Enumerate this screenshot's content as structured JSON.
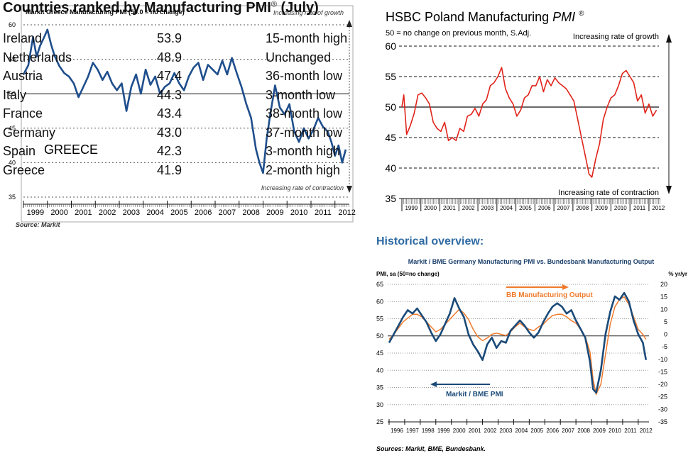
{
  "greece": {
    "title": "Markit Greece Manufacturing PMI (50.0 = no change)",
    "label": "GREECE",
    "top_note": "Increasing rate of growth",
    "bottom_note": "Increasing rate of contraction",
    "source": "Source: Markit",
    "y_ticks": [
      "60",
      "55",
      "50",
      "45",
      "40",
      "35"
    ],
    "x_ticks": [
      "1999",
      "2000",
      "2001",
      "2002",
      "2003",
      "2004",
      "2005",
      "2006",
      "2007",
      "2008",
      "2009",
      "2010",
      "2011",
      "2012"
    ],
    "line_color": "#1f4e8c"
  },
  "poland": {
    "title": "HSBC Poland Manufacturing",
    "title_italic": "PMI",
    "title_sup": "®",
    "subtitle": "50 = no change on previous month, S.Adj.",
    "top_note": "Increasing rate of growth",
    "bottom_note": "Increasing rate of contraction",
    "y_ticks": [
      "60",
      "55",
      "50",
      "45",
      "40",
      "35"
    ],
    "x_ticks": [
      "1999",
      "2000",
      "2001",
      "2002",
      "2003",
      "2004",
      "2005",
      "2006",
      "2007",
      "2008",
      "2009",
      "2010",
      "2011",
      "2012"
    ],
    "line_color": "#e0241b"
  },
  "germany": {
    "heading": "Historical overview:",
    "title": "Markit / BME Germany Manufacturing PMI vs. Bundesbank Manufacturing Output",
    "left_axis_label": "PMI, sa (50=no change)",
    "right_axis_label": "% yr/yr",
    "pmi_label": "Markit / BME PMI",
    "output_label": "BB Manufacturing Output",
    "source": "Sources: Markit, BME, Bundesbank.",
    "left_ticks": [
      "65",
      "60",
      "55",
      "50",
      "45",
      "40",
      "35",
      "30",
      "25"
    ],
    "right_ticks": [
      "20",
      "15",
      "10",
      "5",
      "0",
      "-5",
      "-10",
      "-15",
      "-20",
      "-25",
      "-30",
      "-35"
    ],
    "x_ticks": [
      "1996",
      "1997",
      "1998",
      "1999",
      "2000",
      "2001",
      "2002",
      "2003",
      "2004",
      "2005",
      "2006",
      "2007",
      "2008",
      "2009",
      "2010",
      "2011",
      "2012"
    ],
    "pmi_color": "#1b4a78",
    "output_color": "#f07a2c"
  },
  "ranking": {
    "title": "Countries ranked by Manufacturing PMI",
    "title_sup": "®",
    "title_suffix": " (July)",
    "rows": [
      {
        "country": "Ireland",
        "value": "53.9",
        "note": "15-month high"
      },
      {
        "country": "Netherlands",
        "value": "48.9",
        "note": "Unchanged"
      },
      {
        "country": "Austria",
        "value": "47.4",
        "note": "36-month low"
      },
      {
        "country": "Italy",
        "value": "44.3",
        "note": "3-month low"
      },
      {
        "country": "France",
        "value": "43.4",
        "note": "38-month low"
      },
      {
        "country": "Germany",
        "value": "43.0",
        "note": "37-month low"
      },
      {
        "country": "Spain",
        "value": "42.3",
        "note": "3-month high"
      },
      {
        "country": "Greece",
        "value": "41.9",
        "note": "2-month high"
      }
    ]
  },
  "chart_data": [
    {
      "type": "line",
      "title": "Markit Greece Manufacturing PMI (50.0 = no change)",
      "ylim": [
        35,
        60
      ],
      "x_range": [
        1999,
        2012.6
      ],
      "series": [
        {
          "x": [
            1999.0,
            1999.2,
            1999.4,
            1999.55,
            1999.7,
            1999.85,
            2000.0,
            2000.15,
            2000.3,
            2000.5,
            2000.7,
            2000.9,
            2001.1,
            2001.3,
            2001.5,
            2001.7,
            2001.9,
            2002.1,
            2002.3,
            2002.5,
            2002.7,
            2002.9,
            2003.1,
            2003.3,
            2003.5,
            2003.7,
            2003.9,
            2004.1,
            2004.3,
            2004.5,
            2004.7,
            2004.9,
            2005.1,
            2005.3,
            2005.5,
            2005.7,
            2005.9,
            2006.1,
            2006.3,
            2006.5,
            2006.7,
            2006.9,
            2007.1,
            2007.3,
            2007.5,
            2007.7,
            2007.9,
            2008.1,
            2008.3,
            2008.5,
            2008.7,
            2008.85,
            2009.0,
            2009.15,
            2009.3,
            2009.5,
            2009.7,
            2009.9,
            2010.1,
            2010.3,
            2010.5,
            2010.7,
            2010.9,
            2011.1,
            2011.3,
            2011.5,
            2011.7,
            2011.85,
            2012.0,
            2012.15,
            2012.3,
            2012.45
          ],
          "y": [
            52.8,
            54.1,
            58.2,
            55.4,
            57.0,
            58.1,
            59.3,
            57.2,
            55.5,
            54.0,
            53.0,
            52.5,
            51.5,
            49.5,
            51.0,
            52.5,
            54.5,
            53.5,
            52.0,
            53.2,
            51.5,
            50.5,
            51.5,
            47.5,
            51.0,
            52.8,
            50.0,
            53.5,
            51.3,
            52.5,
            50.0,
            51.0,
            51.5,
            53.0,
            51.5,
            50.5,
            52.5,
            53.8,
            54.5,
            52.0,
            54.2,
            53.5,
            52.8,
            54.8,
            52.8,
            55.2,
            53.0,
            51.0,
            48.5,
            46.5,
            42.0,
            40.0,
            38.5,
            43.5,
            47.0,
            51.2,
            48.0,
            47.0,
            48.5,
            44.5,
            43.0,
            45.0,
            43.5,
            44.8,
            46.5,
            45.2,
            44.5,
            43.0,
            41.0,
            42.5,
            40.0,
            41.9
          ]
        }
      ]
    },
    {
      "type": "line",
      "title": "HSBC Poland Manufacturing PMI",
      "ylim": [
        35,
        60
      ],
      "x_range": [
        1999,
        2012.6
      ],
      "series": [
        {
          "x": [
            1999.0,
            1999.1,
            1999.25,
            1999.45,
            1999.65,
            1999.85,
            2000.05,
            2000.25,
            2000.45,
            2000.65,
            2000.85,
            2001.05,
            2001.25,
            2001.45,
            2001.65,
            2001.85,
            2002.05,
            2002.25,
            2002.45,
            2002.65,
            2002.85,
            2003.05,
            2003.25,
            2003.45,
            2003.65,
            2003.85,
            2004.05,
            2004.25,
            2004.45,
            2004.65,
            2004.85,
            2005.05,
            2005.25,
            2005.45,
            2005.65,
            2005.85,
            2006.05,
            2006.25,
            2006.45,
            2006.65,
            2006.85,
            2007.05,
            2007.25,
            2007.45,
            2007.65,
            2007.85,
            2008.05,
            2008.25,
            2008.45,
            2008.65,
            2008.85,
            2009.0,
            2009.2,
            2009.4,
            2009.6,
            2009.8,
            2010.0,
            2010.2,
            2010.4,
            2010.6,
            2010.8,
            2011.0,
            2011.2,
            2011.4,
            2011.6,
            2011.8,
            2012.0,
            2012.2,
            2012.4
          ],
          "y": [
            50.0,
            52.0,
            45.5,
            47.0,
            49.0,
            52.0,
            52.3,
            51.5,
            50.5,
            47.5,
            46.5,
            46.0,
            47.5,
            44.5,
            45.0,
            44.5,
            46.5,
            46.0,
            48.5,
            48.8,
            49.8,
            48.5,
            50.5,
            51.2,
            53.5,
            54.0,
            55.0,
            56.5,
            53.0,
            51.5,
            50.5,
            48.5,
            49.5,
            51.5,
            52.0,
            53.5,
            53.5,
            55.0,
            52.5,
            54.5,
            53.5,
            54.8,
            54.0,
            53.5,
            53.0,
            52.0,
            51.0,
            48.0,
            45.0,
            42.0,
            39.0,
            38.5,
            41.5,
            44.0,
            48.0,
            50.0,
            51.5,
            52.0,
            53.5,
            55.5,
            56.0,
            55.0,
            54.0,
            51.0,
            52.0,
            49.0,
            50.5,
            48.5,
            49.5
          ]
        }
      ]
    },
    {
      "type": "line",
      "title": "Markit / BME Germany Manufacturing PMI vs. Bundesbank Manufacturing Output",
      "ylim": [
        25,
        65
      ],
      "y2lim": [
        -35,
        20
      ],
      "x_range": [
        1996,
        2012.6
      ],
      "series": [
        {
          "name": "Markit / BME PMI",
          "axis": "left",
          "x": [
            1996.0,
            1996.3,
            1996.6,
            1996.9,
            1997.2,
            1997.5,
            1997.8,
            1998.1,
            1998.4,
            1998.7,
            1999.0,
            1999.3,
            1999.6,
            1999.9,
            2000.2,
            2000.5,
            2000.8,
            2001.1,
            2001.4,
            2001.7,
            2002.0,
            2002.3,
            2002.6,
            2002.9,
            2003.2,
            2003.5,
            2003.8,
            2004.1,
            2004.4,
            2004.7,
            2005.0,
            2005.3,
            2005.6,
            2005.9,
            2006.2,
            2006.5,
            2006.8,
            2007.1,
            2007.4,
            2007.7,
            2008.0,
            2008.3,
            2008.6,
            2008.9,
            2009.1,
            2009.3,
            2009.6,
            2009.9,
            2010.2,
            2010.5,
            2010.8,
            2011.1,
            2011.4,
            2011.7,
            2012.0,
            2012.3,
            2012.5
          ],
          "y": [
            48.0,
            50.5,
            53.0,
            55.5,
            57.5,
            56.5,
            58.0,
            56.0,
            54.0,
            51.0,
            48.5,
            50.5,
            53.5,
            56.5,
            61.0,
            58.0,
            55.5,
            50.5,
            47.5,
            45.5,
            43.0,
            47.5,
            49.5,
            46.5,
            48.5,
            48.0,
            51.5,
            53.0,
            54.5,
            53.0,
            51.0,
            49.5,
            51.0,
            54.0,
            56.5,
            58.5,
            59.5,
            58.5,
            56.5,
            57.5,
            54.5,
            52.0,
            49.5,
            42.5,
            34.5,
            33.5,
            40.0,
            50.5,
            57.0,
            61.5,
            60.5,
            62.5,
            60.0,
            54.5,
            50.5,
            48.0,
            43.0
          ]
        },
        {
          "name": "BB Manufacturing Output",
          "axis": "right",
          "x": [
            1996.0,
            1996.3,
            1996.6,
            1996.9,
            1997.2,
            1997.5,
            1997.8,
            1998.1,
            1998.4,
            1998.7,
            1999.0,
            1999.3,
            1999.6,
            1999.9,
            2000.2,
            2000.5,
            2000.8,
            2001.1,
            2001.4,
            2001.7,
            2002.0,
            2002.3,
            2002.6,
            2002.9,
            2003.2,
            2003.5,
            2003.8,
            2004.1,
            2004.4,
            2004.7,
            2005.0,
            2005.3,
            2005.6,
            2005.9,
            2006.2,
            2006.5,
            2006.8,
            2007.1,
            2007.4,
            2007.7,
            2008.0,
            2008.3,
            2008.6,
            2008.9,
            2009.1,
            2009.3,
            2009.6,
            2009.9,
            2010.2,
            2010.5,
            2010.8,
            2011.1,
            2011.4,
            2011.7,
            2012.0,
            2012.3,
            2012.5
          ],
          "y": [
            -2.0,
            0.0,
            2.5,
            5.0,
            6.5,
            8.0,
            8.0,
            7.0,
            5.0,
            3.0,
            1.0,
            2.0,
            4.0,
            6.0,
            8.0,
            10.0,
            8.5,
            6.0,
            2.0,
            -1.0,
            -2.5,
            -1.5,
            0.0,
            0.5,
            0.0,
            -0.5,
            1.0,
            3.0,
            4.5,
            3.0,
            2.0,
            1.5,
            3.0,
            4.0,
            6.0,
            7.5,
            8.0,
            8.0,
            7.0,
            5.5,
            4.5,
            2.0,
            -1.0,
            -7.0,
            -18.0,
            -24.0,
            -20.0,
            -8.0,
            4.0,
            11.0,
            14.0,
            15.0,
            12.0,
            7.0,
            2.0,
            0.0,
            -2.0
          ]
        }
      ]
    }
  ]
}
